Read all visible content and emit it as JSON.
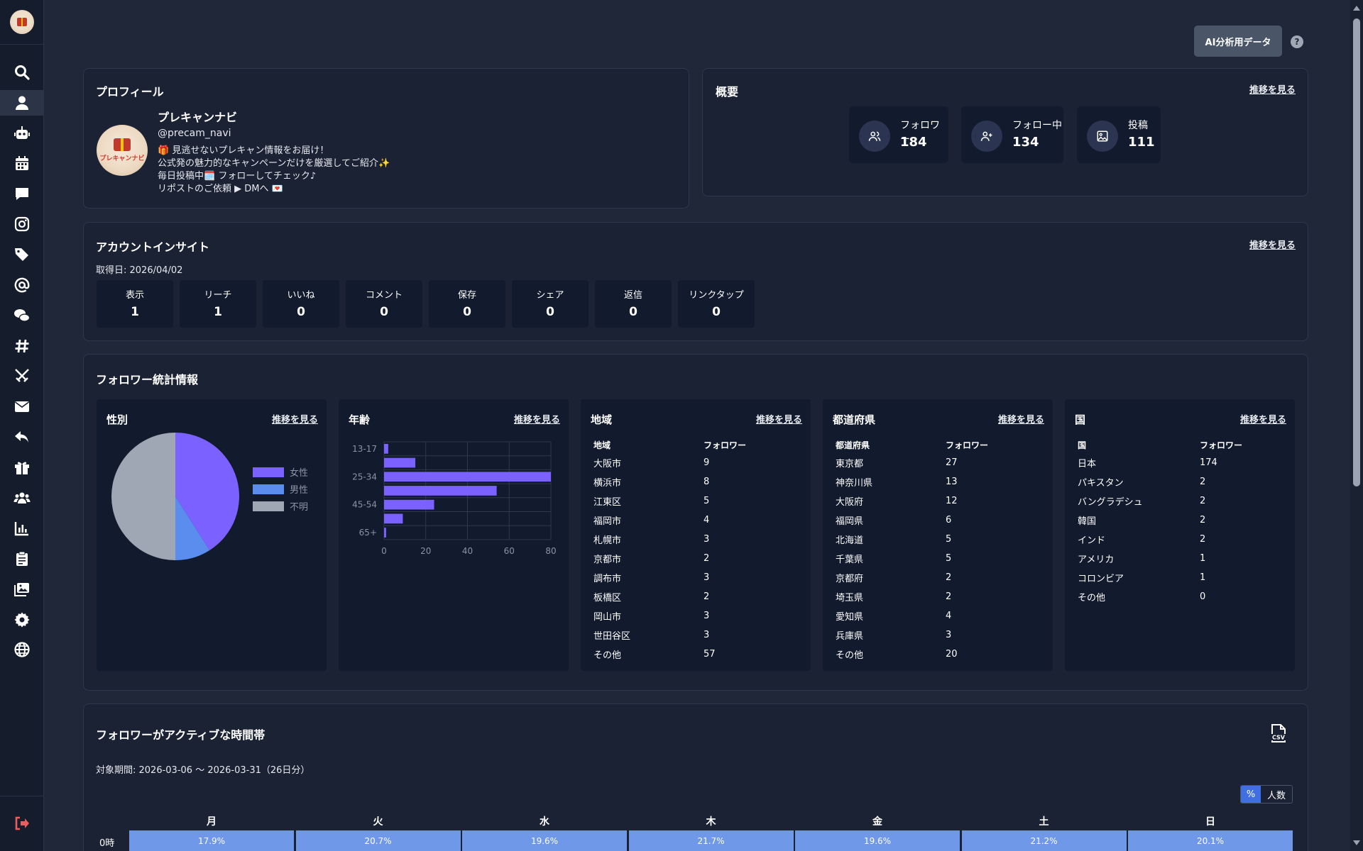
{
  "header": {
    "ai_button": "AI分析用データ",
    "help": "?"
  },
  "sidebar": {
    "icons": [
      "search-icon",
      "user-icon",
      "robot-icon",
      "calendar-icon",
      "comment-icon",
      "instagram-icon",
      "tags-icon",
      "at-icon",
      "comments-icon",
      "hashtag-icon",
      "swords-icon",
      "envelope-icon",
      "reply-icon",
      "gift-icon",
      "users-icon",
      "chart-icon",
      "clipboard-icon",
      "images-icon",
      "gear-icon",
      "globe-icon"
    ],
    "logout_icon": "logout-icon"
  },
  "profile": {
    "title": "プロフィール",
    "name": "プレキャンナビ",
    "handle": "@precam_navi",
    "avatar_text": "プレキャンナビ",
    "bio": [
      "🎁 見逃せないプレキャン情報をお届け！",
      "公式発の魅力的なキャンペーンだけを厳選してご紹介✨",
      "毎日投稿中🗓️ フォローしてチェック♪",
      "リポストのご依頼 ▶ DMへ 💌"
    ]
  },
  "overview": {
    "title": "概要",
    "link": "推移を見る",
    "stats": [
      {
        "label": "フォロワー",
        "value": "184",
        "icon": "users-icon"
      },
      {
        "label": "フォロー中",
        "value": "134",
        "icon": "user-plus-icon"
      },
      {
        "label": "投稿",
        "value": "111",
        "icon": "image-icon"
      }
    ]
  },
  "insights": {
    "title": "アカウントインサイト",
    "link": "推移を見る",
    "date": "取得日: 2026/04/02",
    "items": [
      {
        "label": "表示",
        "value": "1"
      },
      {
        "label": "リーチ",
        "value": "1"
      },
      {
        "label": "いいね",
        "value": "0"
      },
      {
        "label": "コメント",
        "value": "0"
      },
      {
        "label": "保存",
        "value": "0"
      },
      {
        "label": "シェア",
        "value": "0"
      },
      {
        "label": "返信",
        "value": "0"
      },
      {
        "label": "リンクタップ",
        "value": "0"
      }
    ]
  },
  "follower_stats": {
    "title": "フォロワー統計情報",
    "link": "推移を見る",
    "gender": {
      "title": "性別"
    },
    "age": {
      "title": "年齢"
    },
    "region": {
      "title": "地域",
      "col1": "地域",
      "col2": "フォロワー",
      "rows": [
        [
          "大阪市",
          "9"
        ],
        [
          "横浜市",
          "8"
        ],
        [
          "江東区",
          "5"
        ],
        [
          "福岡市",
          "4"
        ],
        [
          "札幌市",
          "3"
        ],
        [
          "京都市",
          "2"
        ],
        [
          "調布市",
          "3"
        ],
        [
          "板橋区",
          "2"
        ],
        [
          "岡山市",
          "3"
        ],
        [
          "世田谷区",
          "3"
        ],
        [
          "その他",
          "57"
        ]
      ]
    },
    "prefecture": {
      "title": "都道府県",
      "col1": "都道府県",
      "col2": "フォロワー",
      "rows": [
        [
          "東京都",
          "27"
        ],
        [
          "神奈川県",
          "13"
        ],
        [
          "大阪府",
          "12"
        ],
        [
          "福岡県",
          "6"
        ],
        [
          "北海道",
          "5"
        ],
        [
          "千葉県",
          "5"
        ],
        [
          "京都府",
          "2"
        ],
        [
          "埼玉県",
          "2"
        ],
        [
          "愛知県",
          "4"
        ],
        [
          "兵庫県",
          "3"
        ],
        [
          "その他",
          "20"
        ]
      ]
    },
    "country": {
      "title": "国",
      "col1": "国",
      "col2": "フォロワー",
      "rows": [
        [
          "日本",
          "174"
        ],
        [
          "パキスタン",
          "2"
        ],
        [
          "バングラデシュ",
          "2"
        ],
        [
          "韓国",
          "2"
        ],
        [
          "インド",
          "2"
        ],
        [
          "アメリカ",
          "1"
        ],
        [
          "コロンビア",
          "1"
        ],
        [
          "その他",
          "0"
        ]
      ]
    }
  },
  "chart_data": [
    {
      "type": "pie",
      "title": "性別",
      "categories": [
        "女性",
        "男性",
        "不明"
      ],
      "values": [
        41,
        9,
        50
      ],
      "colors": [
        "#7b61ff",
        "#5b8def",
        "#a0a7b4"
      ],
      "legend": "right"
    },
    {
      "type": "bar",
      "orientation": "horizontal",
      "title": "年齢",
      "categories": [
        "13-17",
        "18-24",
        "25-34",
        "35-44",
        "45-54",
        "55-64",
        "65+"
      ],
      "tick_labels": [
        "13-17",
        "",
        "25-34",
        "",
        "45-54",
        "",
        "65+"
      ],
      "values": [
        2,
        15,
        80,
        54,
        24,
        9,
        1
      ],
      "xlim": [
        0,
        80
      ],
      "xticks": [
        0,
        20,
        40,
        60,
        80
      ],
      "color": "#7b61ff",
      "grid": true
    }
  ],
  "active_hours": {
    "title": "フォロワーがアクティブな時間帯",
    "period": "対象期間: 2026-03-06 〜 2026-03-31（26日分）",
    "csv_icon": "csv-file-icon",
    "toggle": [
      "%",
      "人数"
    ],
    "days": [
      "月",
      "火",
      "水",
      "木",
      "金",
      "土",
      "日"
    ],
    "row_label": "0時",
    "row": [
      "17.9%",
      "20.7%",
      "19.6%",
      "21.7%",
      "19.6%",
      "21.2%",
      "20.1%"
    ]
  }
}
